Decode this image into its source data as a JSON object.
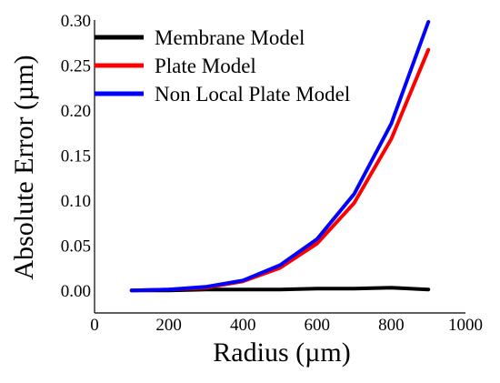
{
  "chart_data": {
    "type": "line",
    "xlabel": "Radius (µm)",
    "ylabel": "Absolute Error (µm)",
    "xlim": [
      0,
      1000
    ],
    "ylim": [
      -0.025,
      0.3
    ],
    "x_ticks": [
      0,
      200,
      400,
      600,
      800,
      1000
    ],
    "y_ticks": [
      0.0,
      0.05,
      0.1,
      0.15,
      0.2,
      0.25,
      0.3
    ],
    "y_tick_labels": [
      "0.00",
      "0.05",
      "0.10",
      "0.15",
      "0.20",
      "0.25",
      "0.30"
    ],
    "x_tick_labels": [
      "0",
      "200",
      "400",
      "600",
      "800",
      "1000"
    ],
    "grid": false,
    "legend_position": "top-left",
    "x": [
      100,
      200,
      300,
      400,
      500,
      600,
      700,
      800,
      900
    ],
    "series": [
      {
        "name": "Membrane Model",
        "color": "#000000",
        "values": [
          0.0,
          0.0,
          0.001,
          0.001,
          0.001,
          0.002,
          0.002,
          0.003,
          0.001
        ]
      },
      {
        "name": "Plate Model",
        "color": "#ff0000",
        "values": [
          0.0,
          0.001,
          0.003,
          0.01,
          0.025,
          0.052,
          0.097,
          0.168,
          0.267
        ]
      },
      {
        "name": "Non Local Plate Model",
        "color": "#0000ff",
        "values": [
          0.0,
          0.001,
          0.004,
          0.011,
          0.028,
          0.057,
          0.107,
          0.185,
          0.298
        ]
      }
    ]
  }
}
